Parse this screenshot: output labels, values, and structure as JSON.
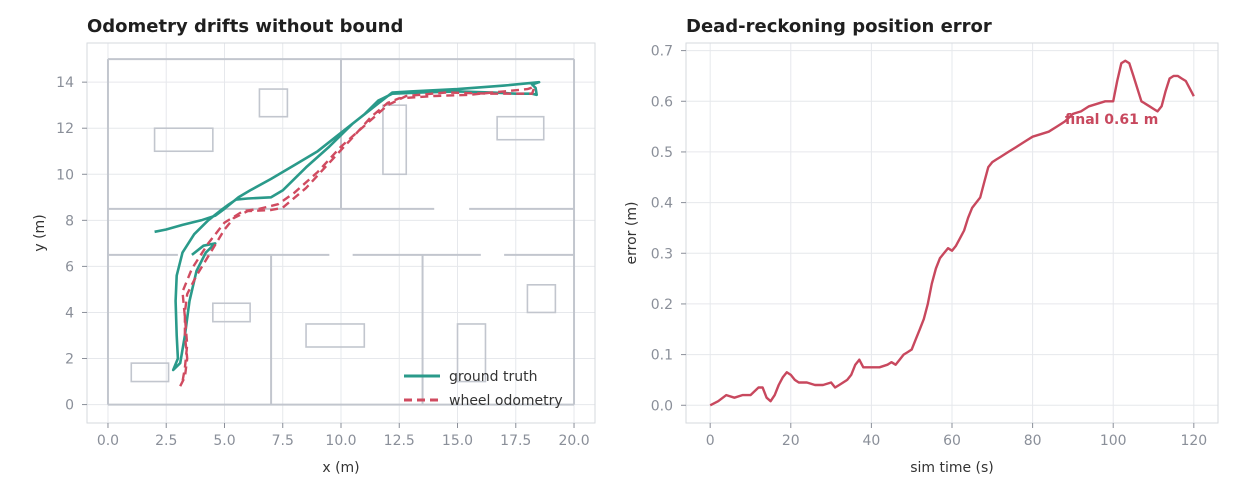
{
  "colors": {
    "truth": "#2a9a8a",
    "odom": "#d04b60",
    "error": "#c8485e"
  },
  "chart_data": [
    {
      "type": "line",
      "title": "Odometry drifts without bound",
      "xlabel": "x (m)",
      "ylabel": "y (m)",
      "xlim": [
        -0.9,
        20.9
      ],
      "ylim": [
        -0.8,
        15.7
      ],
      "xticks": [
        0.0,
        2.5,
        5.0,
        7.5,
        10.0,
        12.5,
        15.0,
        17.5,
        20.0
      ],
      "xtick_labels": [
        "0.0",
        "2.5",
        "5.0",
        "7.5",
        "10.0",
        "12.5",
        "15.0",
        "17.5",
        "20.0"
      ],
      "yticks": [
        0,
        2,
        4,
        6,
        8,
        10,
        12,
        14
      ],
      "ytick_labels": [
        "0",
        "2",
        "4",
        "6",
        "8",
        "10",
        "12",
        "14"
      ],
      "grid": true,
      "legend": "bottom-right",
      "map": {
        "walls": [
          [
            [
              0,
              0
            ],
            [
              20,
              0
            ]
          ],
          [
            [
              20,
              0
            ],
            [
              20,
              15
            ]
          ],
          [
            [
              20,
              15
            ],
            [
              0,
              15
            ]
          ],
          [
            [
              0,
              15
            ],
            [
              0,
              0
            ]
          ],
          [
            [
              10,
              8.5
            ],
            [
              10,
              15
            ]
          ],
          [
            [
              0,
              8.5
            ],
            [
              14,
              8.5
            ]
          ],
          [
            [
              15.5,
              8.5
            ],
            [
              20,
              8.5
            ]
          ],
          [
            [
              0,
              6.5
            ],
            [
              3,
              6.5
            ]
          ],
          [
            [
              4,
              6.5
            ],
            [
              9.5,
              6.5
            ]
          ],
          [
            [
              10.5,
              6.5
            ],
            [
              16,
              6.5
            ]
          ],
          [
            [
              17,
              6.5
            ],
            [
              20,
              6.5
            ]
          ],
          [
            [
              7,
              0
            ],
            [
              7,
              6.5
            ]
          ],
          [
            [
              13.5,
              0
            ],
            [
              13.5,
              6.5
            ]
          ]
        ],
        "obstacles": [
          [
            2,
            11,
            2.5,
            1
          ],
          [
            6.5,
            12.5,
            1.2,
            1.2
          ],
          [
            11.8,
            10,
            1,
            3
          ],
          [
            16.7,
            11.5,
            2,
            1
          ],
          [
            1,
            1,
            1.6,
            0.8
          ],
          [
            4.5,
            3.6,
            1.6,
            0.8
          ],
          [
            8.5,
            2.5,
            2.5,
            1
          ],
          [
            15,
            1,
            1.2,
            2.5
          ],
          [
            18,
            4,
            1.2,
            1.2
          ]
        ]
      },
      "series": [
        {
          "name": "ground truth",
          "points": [
            [
              2.0,
              7.5
            ],
            [
              2.5,
              7.6
            ],
            [
              3.2,
              7.8
            ],
            [
              4.0,
              8.0
            ],
            [
              4.6,
              8.2
            ],
            [
              5.0,
              8.5
            ],
            [
              5.6,
              9.0
            ],
            [
              6.1,
              9.3
            ],
            [
              7.0,
              9.8
            ],
            [
              8.0,
              10.4
            ],
            [
              9.0,
              11.0
            ],
            [
              10.0,
              11.8
            ],
            [
              11.0,
              12.6
            ],
            [
              11.6,
              13.2
            ],
            [
              12.2,
              13.5
            ],
            [
              13.5,
              13.55
            ],
            [
              15.0,
              13.6
            ],
            [
              16.5,
              13.55
            ],
            [
              17.5,
              13.5
            ],
            [
              18.2,
              13.5
            ],
            [
              18.4,
              13.45
            ],
            [
              18.35,
              13.75
            ],
            [
              18.2,
              13.9
            ],
            [
              18.5,
              14.0
            ],
            [
              17.0,
              13.85
            ],
            [
              15.0,
              13.7
            ],
            [
              13.0,
              13.6
            ],
            [
              12.2,
              13.55
            ],
            [
              11.5,
              13.0
            ],
            [
              10.5,
              12.2
            ],
            [
              9.5,
              11.2
            ],
            [
              8.5,
              10.3
            ],
            [
              7.5,
              9.3
            ],
            [
              7.0,
              9.0
            ],
            [
              6.0,
              8.95
            ],
            [
              5.5,
              8.9
            ],
            [
              5.2,
              8.7
            ],
            [
              4.8,
              8.4
            ],
            [
              4.3,
              8.0
            ],
            [
              3.7,
              7.4
            ],
            [
              3.2,
              6.6
            ],
            [
              2.95,
              5.6
            ],
            [
              2.9,
              4.5
            ],
            [
              2.95,
              3.0
            ],
            [
              3.0,
              2.0
            ],
            [
              2.8,
              1.5
            ],
            [
              3.1,
              1.8
            ],
            [
              3.3,
              3.0
            ],
            [
              3.5,
              4.5
            ],
            [
              3.8,
              5.8
            ],
            [
              4.2,
              6.6
            ],
            [
              4.6,
              7.0
            ],
            [
              4.1,
              6.9
            ],
            [
              3.6,
              6.5
            ]
          ]
        },
        {
          "name": "wheel odometry",
          "points": [
            [
              3.1,
              0.8
            ],
            [
              3.3,
              1.2
            ],
            [
              3.4,
              2.0
            ],
            [
              3.3,
              3.0
            ],
            [
              3.3,
              4.0
            ],
            [
              3.4,
              4.8
            ],
            [
              3.8,
              5.6
            ],
            [
              4.4,
              6.6
            ],
            [
              5.0,
              7.6
            ],
            [
              5.4,
              8.1
            ],
            [
              6.0,
              8.4
            ],
            [
              7.0,
              8.45
            ],
            [
              7.5,
              8.55
            ],
            [
              8.5,
              9.4
            ],
            [
              9.5,
              10.5
            ],
            [
              10.5,
              11.6
            ],
            [
              11.3,
              12.5
            ],
            [
              12.0,
              13.1
            ],
            [
              12.5,
              13.3
            ],
            [
              14.0,
              13.4
            ],
            [
              15.5,
              13.45
            ],
            [
              17.0,
              13.6
            ],
            [
              18.0,
              13.7
            ],
            [
              18.3,
              13.8
            ],
            [
              18.2,
              13.5
            ],
            [
              16.5,
              13.5
            ],
            [
              14.5,
              13.55
            ],
            [
              12.8,
              13.4
            ],
            [
              12.0,
              13.0
            ],
            [
              11.0,
              12.1
            ],
            [
              10.0,
              11.2
            ],
            [
              9.0,
              10.1
            ],
            [
              8.0,
              9.2
            ],
            [
              7.3,
              8.7
            ],
            [
              6.5,
              8.5
            ],
            [
              5.8,
              8.4
            ],
            [
              5.0,
              7.9
            ],
            [
              4.3,
              7.0
            ],
            [
              3.6,
              5.9
            ],
            [
              3.2,
              4.9
            ],
            [
              3.3,
              3.8
            ],
            [
              3.4,
              2.6
            ],
            [
              3.3,
              1.6
            ],
            [
              3.2,
              1.0
            ]
          ]
        }
      ]
    },
    {
      "type": "line",
      "title": "Dead-reckoning position error",
      "xlabel": "sim time (s)",
      "ylabel": "error (m)",
      "xlim": [
        -6,
        126
      ],
      "ylim": [
        -0.035,
        0.715
      ],
      "xticks": [
        0,
        20,
        40,
        60,
        80,
        100,
        120
      ],
      "xtick_labels": [
        "0",
        "20",
        "40",
        "60",
        "80",
        "100",
        "120"
      ],
      "yticks": [
        0.0,
        0.1,
        0.2,
        0.3,
        0.4,
        0.5,
        0.6,
        0.7
      ],
      "ytick_labels": [
        "0.0",
        "0.1",
        "0.2",
        "0.3",
        "0.4",
        "0.5",
        "0.6",
        "0.7"
      ],
      "grid": true,
      "annotation": {
        "text": "final 0.61 m",
        "x": 88,
        "y": 0.565
      },
      "series": [
        {
          "x": [
            0,
            2,
            4,
            6,
            8,
            10,
            12,
            13,
            14,
            15,
            16,
            17,
            18,
            19,
            20,
            21,
            22,
            24,
            26,
            28,
            30,
            31,
            32,
            34,
            35,
            36,
            37,
            38,
            40,
            42,
            44,
            45,
            46,
            47,
            48,
            49,
            50,
            51,
            52,
            53,
            54,
            55,
            56,
            57,
            58,
            59,
            60,
            61,
            62,
            63,
            64,
            65,
            66,
            67,
            68,
            69,
            70,
            71,
            72,
            74,
            76,
            78,
            80,
            82,
            84,
            86,
            88,
            90,
            92,
            94,
            96,
            98,
            100,
            101,
            102,
            103,
            104,
            105,
            106,
            107,
            108,
            109,
            110,
            111,
            112,
            113,
            114,
            115,
            116,
            117,
            118,
            119,
            120
          ],
          "y": [
            0.0,
            0.008,
            0.02,
            0.015,
            0.02,
            0.02,
            0.035,
            0.035,
            0.015,
            0.008,
            0.02,
            0.04,
            0.055,
            0.065,
            0.06,
            0.05,
            0.045,
            0.045,
            0.04,
            0.04,
            0.045,
            0.035,
            0.04,
            0.05,
            0.06,
            0.08,
            0.09,
            0.075,
            0.075,
            0.075,
            0.08,
            0.085,
            0.08,
            0.09,
            0.1,
            0.105,
            0.11,
            0.13,
            0.15,
            0.17,
            0.2,
            0.24,
            0.27,
            0.29,
            0.3,
            0.31,
            0.305,
            0.315,
            0.33,
            0.345,
            0.37,
            0.39,
            0.4,
            0.41,
            0.44,
            0.47,
            0.48,
            0.485,
            0.49,
            0.5,
            0.51,
            0.52,
            0.53,
            0.535,
            0.54,
            0.55,
            0.56,
            0.575,
            0.58,
            0.59,
            0.595,
            0.6,
            0.6,
            0.64,
            0.675,
            0.68,
            0.675,
            0.65,
            0.625,
            0.6,
            0.595,
            0.59,
            0.585,
            0.58,
            0.59,
            0.62,
            0.645,
            0.65,
            0.65,
            0.645,
            0.64,
            0.625,
            0.61
          ]
        }
      ]
    }
  ]
}
